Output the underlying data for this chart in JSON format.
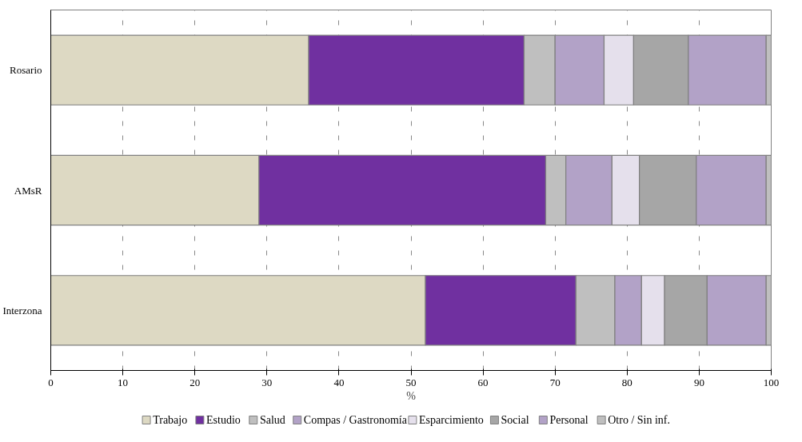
{
  "chart_data": {
    "type": "bar",
    "orientation": "horizontal",
    "stacked": true,
    "xlabel": "%",
    "categories": [
      "Rosario",
      "AMsR",
      "Interzona"
    ],
    "series": [
      {
        "name": "Trabajo",
        "color": "#ddd9c3",
        "values": [
          35.8,
          28.9,
          52.0
        ]
      },
      {
        "name": "Estudio",
        "color": "#7030a0",
        "values": [
          29.9,
          39.8,
          20.9
        ]
      },
      {
        "name": "Salud",
        "color": "#bfbfbf",
        "values": [
          4.3,
          2.8,
          5.4
        ]
      },
      {
        "name": "Compas / Gastronomía",
        "color": "#b2a2c7",
        "values": [
          6.8,
          6.4,
          3.7
        ]
      },
      {
        "name": "Esparcimiento",
        "color": "#e5e0ec",
        "values": [
          4.1,
          3.8,
          3.2
        ]
      },
      {
        "name": "Social",
        "color": "#a6a6a6",
        "values": [
          7.6,
          7.9,
          5.9
        ]
      },
      {
        "name": "Personal",
        "color": "#b2a2c7",
        "values": [
          10.8,
          9.7,
          8.2
        ]
      },
      {
        "name": "Otro / Sin inf.",
        "color": "#bfbfbf",
        "values": [
          0.7,
          0.7,
          0.7
        ]
      }
    ],
    "xlim": [
      0,
      100
    ],
    "xticks": [
      0,
      10,
      20,
      30,
      40,
      50,
      60,
      70,
      80,
      90,
      100
    ],
    "grid": "x",
    "legend": "bottom"
  }
}
